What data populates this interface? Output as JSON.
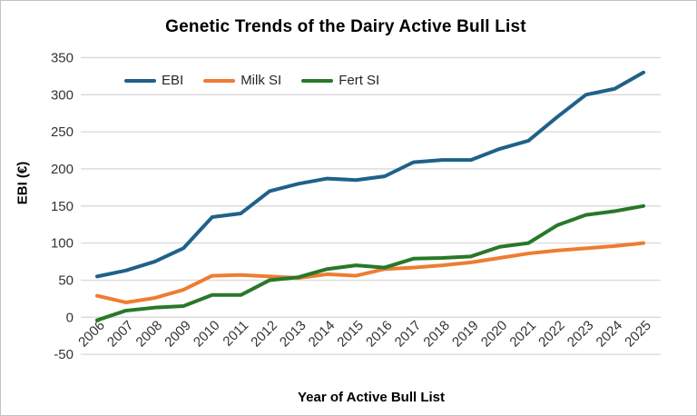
{
  "window": {
    "background": "#ffffff",
    "border_color": "#c2c2c2"
  },
  "colors": {
    "gridline": "#d9d9d9",
    "tick_label": "#333333",
    "title": "#000000"
  },
  "chart_data": {
    "type": "line",
    "title": "Genetic Trends of the Dairy Active Bull List",
    "xlabel": "Year of Active Bull List",
    "ylabel": "EBI (€)",
    "ylim": [
      -50,
      350
    ],
    "yticks": [
      350,
      300,
      250,
      200,
      150,
      100,
      50,
      0,
      -50
    ],
    "grid": true,
    "legend_position": "top-inside-horizontal",
    "categories": [
      "2006",
      "2007",
      "2008",
      "2009",
      "2010",
      "2011",
      "2012",
      "2013",
      "2014",
      "2015",
      "2016",
      "2017",
      "2018",
      "2019",
      "2020",
      "2021",
      "2022",
      "2023",
      "2024",
      "2025"
    ],
    "series": [
      {
        "name": "EBI",
        "color": "#1F6189",
        "values": [
          55,
          63,
          75,
          93,
          135,
          140,
          170,
          180,
          187,
          185,
          190,
          209,
          212,
          212,
          227,
          238,
          270,
          300,
          308,
          330
        ]
      },
      {
        "name": "Milk SI",
        "color": "#ED7D31",
        "values": [
          29,
          20,
          26,
          37,
          56,
          57,
          55,
          53,
          58,
          56,
          65,
          67,
          70,
          74,
          80,
          86,
          90,
          93,
          96,
          100
        ]
      },
      {
        "name": "Fert SI",
        "color": "#287828",
        "values": [
          -4,
          9,
          13,
          15,
          30,
          30,
          50,
          54,
          65,
          70,
          67,
          79,
          80,
          82,
          95,
          100,
          124,
          138,
          143,
          150
        ]
      }
    ]
  }
}
